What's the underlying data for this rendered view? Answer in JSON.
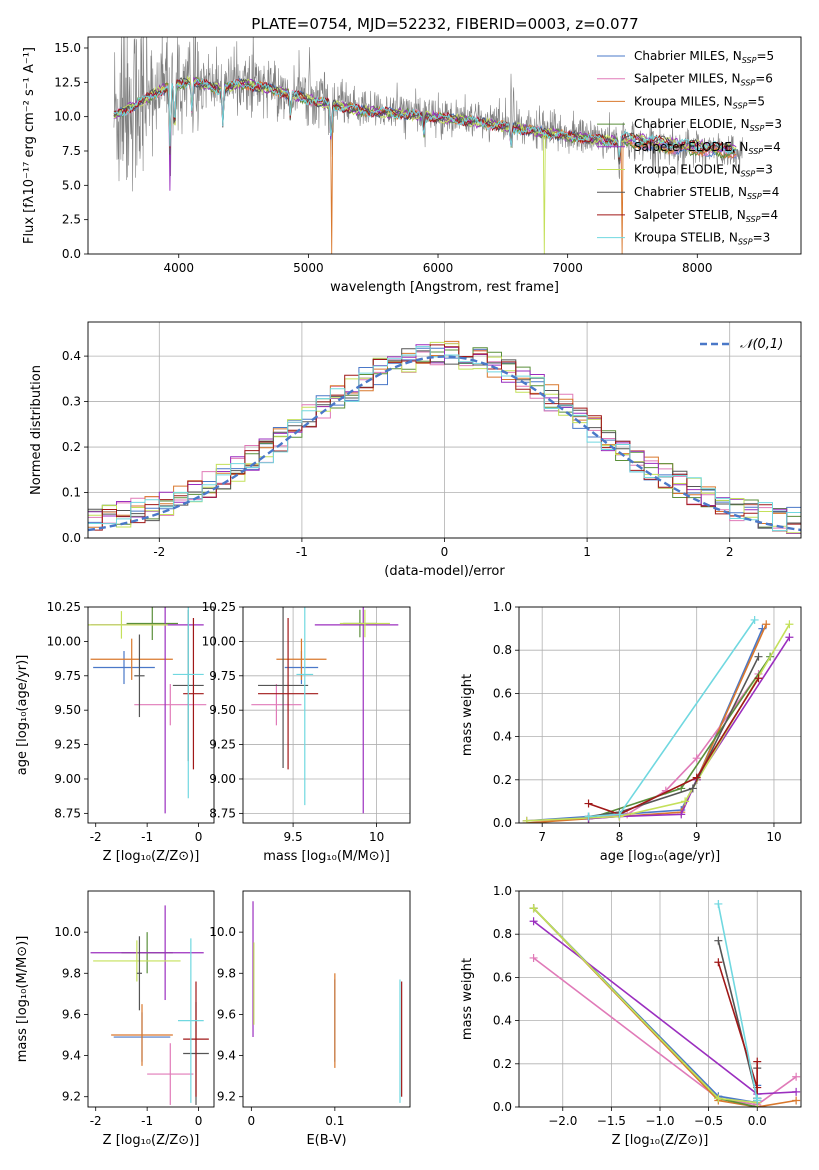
{
  "figure_title": "PLATE=0754, MJD=52232, FIBERID=0003, z=0.077",
  "legend_models": [
    {
      "label": "Chabrier MILES, N",
      "sub": "SSP",
      "tail": "=5",
      "color": "#4a78c8"
    },
    {
      "label": "Salpeter MILES, N",
      "sub": "SSP",
      "tail": "=6",
      "color": "#e07ab8"
    },
    {
      "label": "Kroupa MILES, N",
      "sub": "SSP",
      "tail": "=5",
      "color": "#d9782d"
    },
    {
      "label": "Chabrier ELODIE, N",
      "sub": "SSP",
      "tail": "=3",
      "color": "#5a8f3a"
    },
    {
      "label": "Salpeter ELODIE, N",
      "sub": "SSP",
      "tail": "=4",
      "color": "#9b2fbf"
    },
    {
      "label": "Kroupa ELODIE, N",
      "sub": "SSP",
      "tail": "=3",
      "color": "#c4e05a"
    },
    {
      "label": "Chabrier STELIB, N",
      "sub": "SSP",
      "tail": "=4",
      "color": "#555555"
    },
    {
      "label": "Salpeter STELIB, N",
      "sub": "SSP",
      "tail": "=4",
      "color": "#a01818"
    },
    {
      "label": "Kroupa STELIB, N",
      "sub": "SSP",
      "tail": "=3",
      "color": "#70d8e0"
    }
  ],
  "chart_data": [
    {
      "id": "spectrum",
      "type": "line",
      "xlabel": "wavelength [Angstrom, rest frame]",
      "ylabel": "Flux [fλ10⁻¹⁷ erg cm⁻² s⁻¹ A⁻¹]",
      "xlim": [
        3300,
        8800
      ],
      "ylim": [
        0,
        15.8
      ],
      "xticks": [
        4000,
        5000,
        6000,
        7000,
        8000
      ],
      "yticks": [
        0.0,
        2.5,
        5.0,
        7.5,
        10.0,
        12.5,
        15.0
      ],
      "ytick_labels": [
        "0.0",
        "2.5",
        "5.0",
        "7.5",
        "10.0",
        "12.5",
        "15.0"
      ],
      "data_color": "#808080",
      "continuum_nodes": [
        [
          3500,
          10.2
        ],
        [
          3700,
          11.2
        ],
        [
          3900,
          12.3
        ],
        [
          4100,
          12.8
        ],
        [
          4300,
          12.2
        ],
        [
          4500,
          12.6
        ],
        [
          4700,
          12.2
        ],
        [
          4900,
          11.7
        ],
        [
          5100,
          11.2
        ],
        [
          5400,
          10.6
        ],
        [
          5800,
          10.3
        ],
        [
          6200,
          9.9
        ],
        [
          6600,
          9.3
        ],
        [
          7000,
          8.7
        ],
        [
          7400,
          8.3
        ],
        [
          7800,
          7.8
        ],
        [
          8300,
          7.4
        ]
      ],
      "absorption_dips": [
        [
          3933,
          5.5
        ],
        [
          3968,
          4.0
        ],
        [
          4102,
          2.5
        ],
        [
          4340,
          3.0
        ],
        [
          4861,
          2.0
        ],
        [
          5175,
          3.0
        ],
        [
          5890,
          1.5
        ],
        [
          6563,
          1.5
        ],
        [
          7400,
          2.0
        ]
      ],
      "spikes": [
        [
          3727,
          2.5
        ],
        [
          5007,
          3.5
        ],
        [
          6563,
          5.5
        ],
        [
          6583,
          2.5
        ]
      ],
      "model_artifacts": [
        [
          5178,
          2,
          0.0
        ],
        [
          6820,
          5,
          0.0
        ],
        [
          7420,
          2,
          0.0
        ],
        [
          3935,
          4,
          4.6
        ]
      ]
    },
    {
      "id": "residuals",
      "type": "histogram",
      "xlabel": "(data-model)/error",
      "ylabel": "Normed distribution",
      "xlim": [
        -2.5,
        2.5
      ],
      "ylim": [
        0,
        0.475
      ],
      "xticks": [
        -2,
        -1,
        0,
        1,
        2
      ],
      "yticks": [
        0.0,
        0.1,
        0.2,
        0.3,
        0.4
      ],
      "ytick_labels": [
        "0.0",
        "0.1",
        "0.2",
        "0.3",
        "0.4"
      ],
      "bin_width": 0.1,
      "gaussian_label": "𝒩(0,1)",
      "gaussian_color": "#4a78c8"
    },
    {
      "id": "age_vs_Z",
      "type": "errorbar",
      "xlabel": "Z [log₁₀(Z/Z⊙)]",
      "ylabel": "age  [log₁₀(age/yr)]",
      "xlim": [
        -2.15,
        0.3
      ],
      "ylim": [
        8.68,
        10.25
      ],
      "xticks": [
        -2,
        -1,
        0
      ],
      "yticks": [
        8.75,
        9.0,
        9.25,
        9.5,
        9.75,
        10.0,
        10.25
      ],
      "ytick_labels": [
        "8.75",
        "9.00",
        "9.25",
        "9.50",
        "9.75",
        "10.00",
        "10.25"
      ],
      "points": [
        {
          "model": 0,
          "x": -1.45,
          "xerr": 0.6,
          "y": 9.81,
          "yerr": 0.12
        },
        {
          "model": 1,
          "x": -0.55,
          "xerr": 0.7,
          "y": 9.54,
          "yerr": 0.15
        },
        {
          "model": 2,
          "x": -1.3,
          "xerr": 0.8,
          "y": 9.87,
          "yerr": 0.15
        },
        {
          "model": 3,
          "x": -0.9,
          "xerr": 0.5,
          "y": 10.13,
          "yerr": 0.12
        },
        {
          "model": 4,
          "x": -1.0,
          "xerr": 1.1,
          "y": 10.12,
          "yerr": 0.0
        },
        {
          "model": 4,
          "x": -0.65,
          "xerr": 0.0,
          "y": 9.5,
          "yerr": 0.75
        },
        {
          "model": 5,
          "x": -1.5,
          "xerr": 0.9,
          "y": 10.12,
          "yerr": 0.1
        },
        {
          "model": 6,
          "x": -1.15,
          "xerr": 0.1,
          "y": 9.75,
          "yerr": 0.3
        },
        {
          "model": 6,
          "x": -0.2,
          "xerr": 0.3,
          "y": 9.68,
          "yerr": 0.55
        },
        {
          "model": 7,
          "x": -0.1,
          "xerr": 0.2,
          "y": 9.62,
          "yerr": 0.55
        },
        {
          "model": 8,
          "x": -0.2,
          "xerr": 0.3,
          "y": 9.76,
          "yerr": 0.9
        }
      ]
    },
    {
      "id": "age_vs_mass",
      "type": "errorbar",
      "xlabel": "mass [log₁₀(M/M⊙)]",
      "ylabel": "",
      "xlim": [
        9.2,
        10.2
      ],
      "ylim": [
        8.68,
        10.25
      ],
      "xticks": [
        9.5,
        10.0
      ],
      "yticks": [
        8.75,
        9.0,
        9.25,
        9.5,
        9.75,
        10.0,
        10.25
      ],
      "ytick_labels": [
        "8.75",
        "9.00",
        "9.25",
        "9.50",
        "9.75",
        "10.00",
        "10.25"
      ],
      "points": [
        {
          "model": 0,
          "x": 9.55,
          "xerr": 0.1,
          "y": 9.81,
          "yerr": 0.12
        },
        {
          "model": 1,
          "x": 9.4,
          "xerr": 0.15,
          "y": 9.54,
          "yerr": 0.15
        },
        {
          "model": 2,
          "x": 9.55,
          "xerr": 0.15,
          "y": 9.87,
          "yerr": 0.15
        },
        {
          "model": 3,
          "x": 9.9,
          "xerr": 0.1,
          "y": 10.13,
          "yerr": 0.1
        },
        {
          "model": 4,
          "x": 9.88,
          "xerr": 0.25,
          "y": 10.12,
          "yerr": 0.0
        },
        {
          "model": 4,
          "x": 9.92,
          "xerr": 0.0,
          "y": 9.5,
          "yerr": 0.75
        },
        {
          "model": 5,
          "x": 9.93,
          "xerr": 0.15,
          "y": 10.13,
          "yerr": 0.1
        },
        {
          "model": 6,
          "x": 9.44,
          "xerr": 0.15,
          "y": 9.68,
          "yerr": 0.6
        },
        {
          "model": 7,
          "x": 9.47,
          "xerr": 0.18,
          "y": 9.62,
          "yerr": 0.55
        },
        {
          "model": 8,
          "x": 9.57,
          "xerr": 0.05,
          "y": 9.76,
          "yerr": 0.95
        }
      ]
    },
    {
      "id": "massweight_vs_age",
      "type": "line",
      "xlabel": "age  [log₁₀(age/yr)]",
      "ylabel": "mass weight",
      "xlim": [
        6.7,
        10.35
      ],
      "ylim": [
        0,
        1.0
      ],
      "xticks": [
        7,
        8,
        9,
        10
      ],
      "yticks": [
        0.0,
        0.2,
        0.4,
        0.6,
        0.8,
        1.0
      ],
      "ytick_labels": [
        "0.0",
        "0.2",
        "0.4",
        "0.6",
        "0.8",
        "1.0"
      ],
      "series": [
        {
          "model": 0,
          "x": [
            6.8,
            7.6,
            8.0,
            8.8,
            9.0,
            9.85
          ],
          "y": [
            0.01,
            0.03,
            0.04,
            0.06,
            0.2,
            0.9
          ]
        },
        {
          "model": 1,
          "x": [
            6.8,
            7.6,
            8.1,
            8.6,
            9.0,
            9.8
          ],
          "y": [
            0.01,
            0.02,
            0.04,
            0.15,
            0.3,
            0.69
          ]
        },
        {
          "model": 2,
          "x": [
            6.8,
            7.6,
            8.0,
            8.8,
            9.0,
            9.9
          ],
          "y": [
            0.0,
            0.02,
            0.03,
            0.05,
            0.2,
            0.92
          ]
        },
        {
          "model": 3,
          "x": [
            7.6,
            8.8,
            9.95
          ],
          "y": [
            0.02,
            0.16,
            0.77
          ]
        },
        {
          "model": 4,
          "x": [
            7.6,
            8.0,
            8.8,
            9.0,
            10.2
          ],
          "y": [
            0.02,
            0.03,
            0.04,
            0.2,
            0.86
          ]
        },
        {
          "model": 5,
          "x": [
            6.8,
            8.0,
            8.85,
            10.2
          ],
          "y": [
            0.01,
            0.03,
            0.1,
            0.92
          ]
        },
        {
          "model": 6,
          "x": [
            7.6,
            8.0,
            8.95,
            9.8
          ],
          "y": [
            0.03,
            0.05,
            0.16,
            0.77
          ]
        },
        {
          "model": 7,
          "x": [
            7.6,
            8.0,
            9.0,
            9.8
          ],
          "y": [
            0.09,
            0.04,
            0.21,
            0.67
          ]
        },
        {
          "model": 8,
          "x": [
            7.6,
            8.0,
            9.75
          ],
          "y": [
            0.03,
            0.04,
            0.94
          ]
        }
      ]
    },
    {
      "id": "mass_vs_Z",
      "type": "errorbar",
      "xlabel": "Z [log₁₀(Z/Z⊙)]",
      "ylabel": "mass [log₁₀(M/M⊙)]",
      "xlim": [
        -2.15,
        0.3
      ],
      "ylim": [
        9.15,
        10.2
      ],
      "xticks": [
        -2,
        -1,
        0
      ],
      "yticks": [
        9.2,
        9.4,
        9.6,
        9.8,
        10.0
      ],
      "ytick_labels": [
        "9.2",
        "9.4",
        "9.6",
        "9.8",
        "10.0"
      ],
      "points": [
        {
          "model": 0,
          "x": -1.1,
          "xerr": 0.55,
          "y": 9.49,
          "yerr": 0.12
        },
        {
          "model": 1,
          "x": -0.55,
          "xerr": 0.45,
          "y": 9.31,
          "yerr": 0.15
        },
        {
          "model": 2,
          "x": -1.1,
          "xerr": 0.6,
          "y": 9.5,
          "yerr": 0.15
        },
        {
          "model": 3,
          "x": -1.0,
          "xerr": 0.5,
          "y": 9.9,
          "yerr": 0.1
        },
        {
          "model": 4,
          "x": -1.0,
          "xerr": 1.1,
          "y": 9.9,
          "yerr": 0.0
        },
        {
          "model": 4,
          "x": -0.65,
          "xerr": 0.0,
          "y": 9.9,
          "yerr": 0.23
        },
        {
          "model": 5,
          "x": -1.2,
          "xerr": 0.85,
          "y": 9.86,
          "yerr": 0.1
        },
        {
          "model": 6,
          "x": -1.15,
          "xerr": 0.05,
          "y": 9.8,
          "yerr": 0.18
        },
        {
          "model": 6,
          "x": -0.05,
          "xerr": 0.25,
          "y": 9.41,
          "yerr": 0.25
        },
        {
          "model": 7,
          "x": -0.05,
          "xerr": 0.25,
          "y": 9.48,
          "yerr": 0.28
        },
        {
          "model": 8,
          "x": -0.15,
          "xerr": 0.25,
          "y": 9.57,
          "yerr": 0.4
        }
      ]
    },
    {
      "id": "mass_vs_ebv",
      "type": "errorbar",
      "xlabel": "E(B-V)",
      "ylabel": "",
      "xlim": [
        -0.01,
        0.19
      ],
      "ylim": [
        9.15,
        10.2
      ],
      "xticks": [
        0.0,
        0.1
      ],
      "yticks": [
        9.2,
        9.4,
        9.6,
        9.8,
        10.0
      ],
      "ytick_labels": [
        "9.2",
        "9.4",
        "9.6",
        "9.8",
        "10.0"
      ],
      "points": [
        {
          "model": 0,
          "x": 0.1,
          "xerr": 0,
          "y": 9.57,
          "yerr": 0.2
        },
        {
          "model": 2,
          "x": 0.1,
          "xerr": 0,
          "y": 9.57,
          "yerr": 0.23
        },
        {
          "model": 4,
          "x": 0.002,
          "xerr": 0,
          "y": 9.82,
          "yerr": 0.33
        },
        {
          "model": 5,
          "x": 0.003,
          "xerr": 0,
          "y": 9.75,
          "yerr": 0.2
        },
        {
          "model": 7,
          "x": 0.18,
          "xerr": 0,
          "y": 9.48,
          "yerr": 0.28
        },
        {
          "model": 8,
          "x": 0.178,
          "xerr": 0,
          "y": 9.47,
          "yerr": 0.3
        }
      ]
    },
    {
      "id": "massweight_vs_Z",
      "type": "line",
      "xlabel": "Z [log₁₀(Z/Z⊙)]",
      "ylabel": "mass weight",
      "xlim": [
        -2.45,
        0.45
      ],
      "ylim": [
        0,
        1.0
      ],
      "xticks": [
        -2.0,
        -1.5,
        -1.0,
        -0.5,
        0.0
      ],
      "xtick_labels": [
        "−2.0",
        "−1.5",
        "−1.0",
        "−0.5",
        "0.0"
      ],
      "yticks": [
        0.0,
        0.2,
        0.4,
        0.6,
        0.8,
        1.0
      ],
      "ytick_labels": [
        "0.0",
        "0.2",
        "0.4",
        "0.6",
        "0.8",
        "1.0"
      ],
      "series": [
        {
          "model": 0,
          "x": [
            -2.3,
            -0.4,
            0.0,
            0.0
          ],
          "y": [
            0.92,
            0.05,
            0.02,
            0.1
          ]
        },
        {
          "model": 1,
          "x": [
            -2.3,
            -0.4,
            0.0,
            0.4
          ],
          "y": [
            0.69,
            0.04,
            0.01,
            0.14
          ]
        },
        {
          "model": 2,
          "x": [
            -2.3,
            -0.4,
            0.0,
            0.4
          ],
          "y": [
            0.92,
            0.03,
            0.0,
            0.03
          ]
        },
        {
          "model": 3,
          "x": [
            -2.3,
            -0.4,
            0.0
          ],
          "y": [
            0.92,
            0.04,
            0.0
          ]
        },
        {
          "model": 4,
          "x": [
            -2.3,
            0.0,
            0.4
          ],
          "y": [
            0.86,
            0.06,
            0.07
          ]
        },
        {
          "model": 5,
          "x": [
            -2.3,
            -0.4,
            0.0
          ],
          "y": [
            0.92,
            0.04,
            0.02
          ]
        },
        {
          "model": 6,
          "x": [
            -0.4,
            0.0,
            0.0,
            0.0
          ],
          "y": [
            0.77,
            0.04,
            0.18,
            0.03
          ]
        },
        {
          "model": 7,
          "x": [
            -0.4,
            0.0,
            0.0,
            0.0
          ],
          "y": [
            0.67,
            0.09,
            0.21,
            0.04
          ]
        },
        {
          "model": 8,
          "x": [
            -0.4,
            0.0,
            0.0
          ],
          "y": [
            0.94,
            0.03,
            0.04
          ]
        }
      ]
    }
  ]
}
